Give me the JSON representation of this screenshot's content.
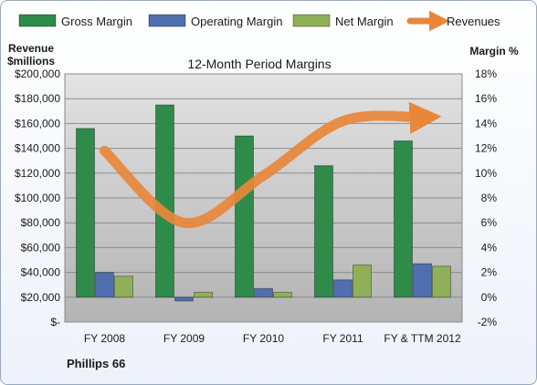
{
  "chart_data": {
    "type": "bar",
    "title": "12-Month Period Margins",
    "company": "Phillips 66",
    "left_axis_label_line1": "Revenue",
    "left_axis_label_line2": "$millions",
    "right_axis_label": "Margin %",
    "categories": [
      "FY 2008",
      "FY 2009",
      "FY 2010",
      "FY 2011",
      "FY & TTM 2012"
    ],
    "left_ylim": [
      0,
      200000
    ],
    "left_ticks": [
      0,
      20000,
      40000,
      60000,
      80000,
      100000,
      120000,
      140000,
      160000,
      180000,
      200000
    ],
    "left_tick_labels": [
      "$-",
      "$20,000",
      "$40,000",
      "$60,000",
      "$80,000",
      "$100,000",
      "$120,000",
      "$140,000",
      "$160,000",
      "$180,000",
      "$200,000"
    ],
    "right_ylim": [
      -2,
      18
    ],
    "right_ticks": [
      -2,
      0,
      2,
      4,
      6,
      8,
      10,
      12,
      14,
      16,
      18
    ],
    "right_tick_labels": [
      "-2%",
      "0%",
      "2%",
      "4%",
      "6%",
      "8%",
      "10%",
      "12%",
      "14%",
      "16%",
      "18%"
    ],
    "grid": true,
    "legend_position": "top",
    "series": [
      {
        "name": "Gross Margin",
        "kind": "bar",
        "axis": "right",
        "color": "#2e8b4a",
        "values": [
          13.6,
          15.5,
          13.0,
          10.6,
          12.6
        ]
      },
      {
        "name": "Operating Margin",
        "kind": "bar",
        "axis": "right",
        "color": "#4f6fae",
        "values": [
          2.0,
          -0.3,
          0.7,
          1.4,
          2.7
        ]
      },
      {
        "name": "Net Margin",
        "kind": "bar",
        "axis": "right",
        "color": "#8fb058",
        "values": [
          1.7,
          0.4,
          0.4,
          2.6,
          2.5
        ]
      },
      {
        "name": "Revenues",
        "kind": "line",
        "axis": "left",
        "color": "#e8873a",
        "values": [
          138000,
          80000,
          118000,
          162000,
          165000
        ]
      }
    ]
  }
}
